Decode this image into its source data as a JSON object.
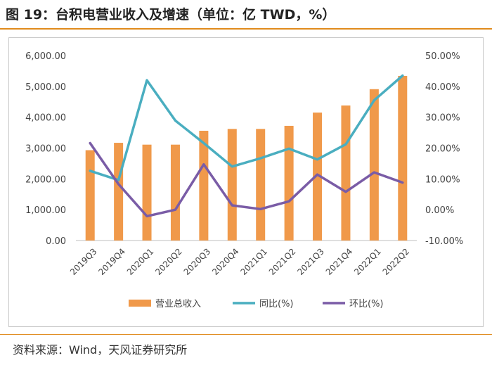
{
  "figure": {
    "title": "图 19：台积电营业收入及增速（单位：亿 TWD，%）",
    "source": "资料来源：Wind，天风证券研究所"
  },
  "colors": {
    "bar": "#f0994a",
    "yoy": "#4aaec0",
    "qoq": "#7a5ca6",
    "accent": "#e08a1c"
  },
  "chart_data": {
    "type": "bar",
    "categories": [
      "2019Q3",
      "2019Q4",
      "2020Q1",
      "2020Q2",
      "2020Q3",
      "2020Q4",
      "2021Q1",
      "2021Q2",
      "2021Q3",
      "2021Q4",
      "2022Q1",
      "2022Q2"
    ],
    "series": [
      {
        "name": "营业总收入",
        "type": "bar",
        "axis": "left",
        "values": [
          2930,
          3170,
          3110,
          3110,
          3560,
          3620,
          3620,
          3720,
          4150,
          4380,
          4910,
          5340
        ]
      },
      {
        "name": "同比(%)",
        "type": "line",
        "axis": "right",
        "values": [
          12.6,
          9.6,
          42.0,
          28.9,
          21.6,
          14.0,
          16.7,
          19.8,
          16.3,
          21.2,
          35.5,
          43.5
        ]
      },
      {
        "name": "环比(%)",
        "type": "line",
        "axis": "right",
        "values": [
          21.6,
          8.3,
          -2.1,
          0.0,
          14.7,
          1.4,
          0.2,
          2.7,
          11.4,
          5.8,
          12.1,
          8.8
        ]
      }
    ],
    "y_left": {
      "min": 0,
      "max": 6000,
      "step": 1000,
      "ticks": [
        "0.00",
        "1,000.00",
        "2,000.00",
        "3,000.00",
        "4,000.00",
        "5,000.00",
        "6,000.00"
      ]
    },
    "y_right": {
      "min": -10,
      "max": 50,
      "step": 10,
      "ticks": [
        "-10.00%",
        "0.00%",
        "10.00%",
        "20.00%",
        "30.00%",
        "40.00%",
        "50.00%"
      ]
    },
    "grid": false,
    "legend": "bottom"
  }
}
